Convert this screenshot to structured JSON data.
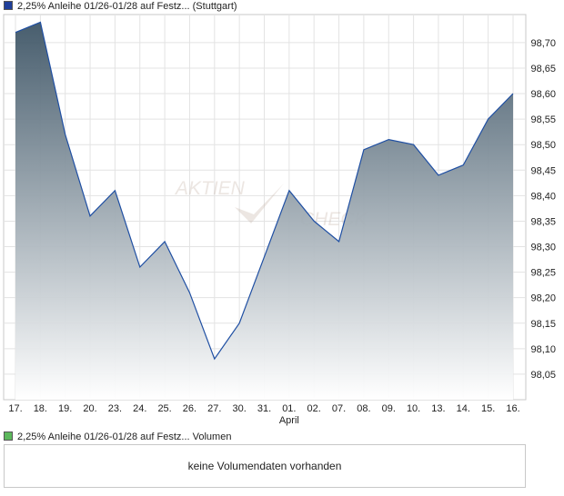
{
  "legend_top": {
    "label": "2,25% Anleihe 01/26-01/28 auf Festz...",
    "exchange": "(Stuttgart)",
    "color": "#1f3f9a"
  },
  "legend_bottom": {
    "label": "2,25% Anleihe 01/26-01/28 auf Festz...",
    "series": "Volumen",
    "color": "#5cb85c"
  },
  "watermark": {
    "line1": "AKTIEN",
    "line2": "CHECK"
  },
  "volume_message": "keine Volumendaten vorhanden",
  "colors": {
    "line": "#1f4fa3",
    "fill_top": "#3e5566",
    "fill_bottom": "#ffffff",
    "grid": "#e3e3e3",
    "frame": "#c8c8c8"
  },
  "chart_data": {
    "type": "area",
    "x": [
      "17.",
      "18.",
      "19.",
      "20.",
      "23.",
      "24.",
      "25.",
      "26.",
      "27.",
      "30.",
      "31.",
      "01.",
      "02.",
      "07.",
      "08.",
      "09.",
      "10.",
      "13.",
      "14.",
      "15.",
      "16."
    ],
    "month_labels": [
      {
        "index": 11,
        "label": "April"
      }
    ],
    "series": [
      {
        "values": [
          98.72,
          98.74,
          98.52,
          98.36,
          98.41,
          98.26,
          98.31,
          98.21,
          98.08,
          98.15,
          98.28,
          98.41,
          98.35,
          98.31,
          98.49,
          98.51,
          98.5,
          98.44,
          98.46,
          98.55,
          98.6
        ]
      }
    ],
    "yticks": [
      "98,05",
      "98,10",
      "98,15",
      "98,20",
      "98,25",
      "98,30",
      "98,35",
      "98,40",
      "98,45",
      "98,50",
      "98,55",
      "98,60",
      "98,65",
      "98,70"
    ],
    "ylim": [
      98.0,
      98.755
    ],
    "grid": true,
    "y_axis_position": "right",
    "legend": "top-left"
  }
}
